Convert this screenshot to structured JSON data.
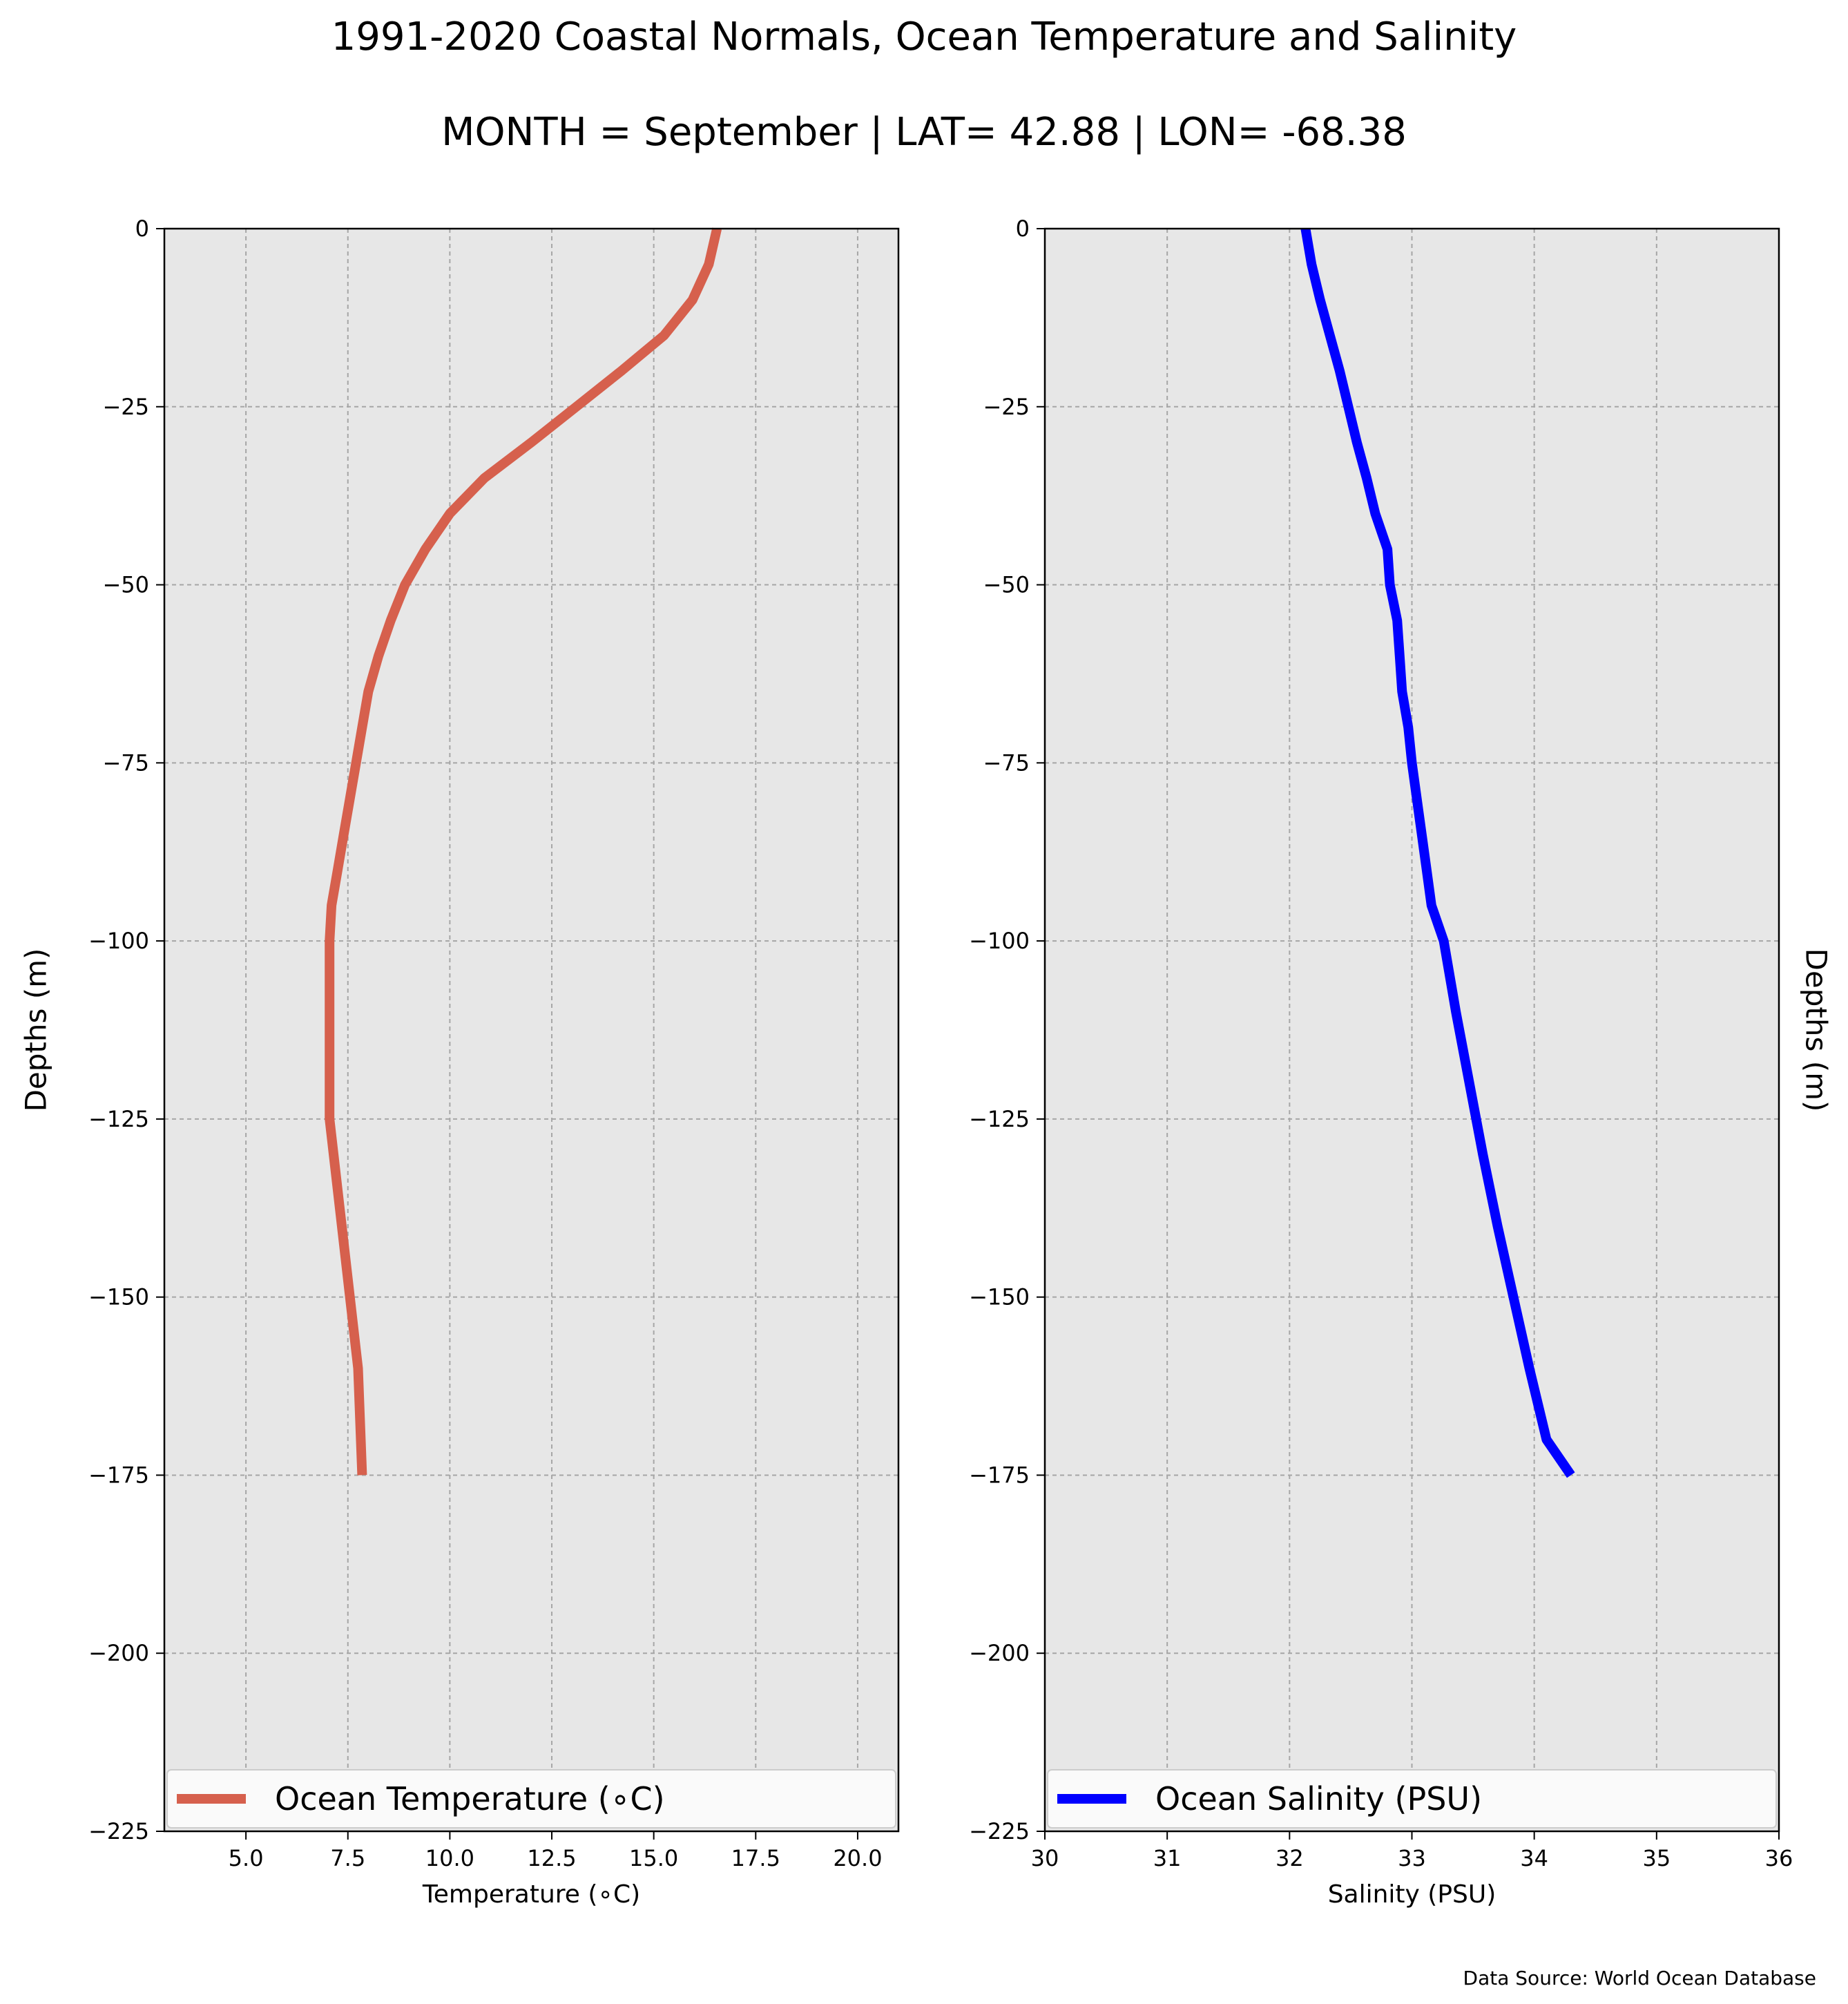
{
  "figure": {
    "title": "1991-2020 Coastal Normals, Ocean Temperature and Salinity",
    "subtitle": "MONTH = September | LAT= 42.88 | LON= -68.38",
    "source": "Data Source: World Ocean Database"
  },
  "chart_data": [
    {
      "type": "line",
      "xlabel": "Temperature (∘C)",
      "ylabel": "Depths (m)",
      "xlim": [
        3.0,
        21.0
      ],
      "ylim": [
        -225,
        0
      ],
      "xticks": [
        5.0,
        7.5,
        10.0,
        12.5,
        15.0,
        17.5,
        20.0
      ],
      "xtick_labels": [
        "5.0",
        "7.5",
        "10.0",
        "12.5",
        "15.0",
        "17.5",
        "20.0"
      ],
      "yticks": [
        0,
        -25,
        -50,
        -75,
        -100,
        -125,
        -150,
        -175,
        -200,
        -225
      ],
      "ytick_labels": [
        "0",
        "−25",
        "−50",
        "−75",
        "−100",
        "−125",
        "−150",
        "−175",
        "−200",
        "−225"
      ],
      "grid": true,
      "legend_position": "lower center",
      "series": [
        {
          "name": "Ocean Temperature (∘C)",
          "color": "#d6604d",
          "x": [
            16.55,
            16.35,
            15.95,
            15.25,
            14.2,
            13.1,
            12.0,
            10.85,
            10.0,
            9.4,
            8.9,
            8.55,
            8.25,
            8.0,
            7.85,
            7.7,
            7.55,
            7.4,
            7.25,
            7.1,
            7.05,
            7.05,
            7.05,
            7.05,
            7.05,
            7.05,
            7.15,
            7.25,
            7.35,
            7.45,
            7.55,
            7.65,
            7.75,
            7.85
          ],
          "y": [
            0,
            -5,
            -10,
            -15,
            -20,
            -25,
            -30,
            -35,
            -40,
            -45,
            -50,
            -55,
            -60,
            -65,
            -70,
            -75,
            -80,
            -85,
            -90,
            -95,
            -100,
            -105,
            -110,
            -115,
            -120,
            -125,
            -130,
            -135,
            -140,
            -145,
            -150,
            -155,
            -160,
            -175
          ]
        }
      ]
    },
    {
      "type": "line",
      "xlabel": "Salinity (PSU)",
      "ylabel": "Depths (m)",
      "xlim": [
        30,
        36
      ],
      "ylim": [
        -225,
        0
      ],
      "xticks": [
        30,
        31,
        32,
        33,
        34,
        35,
        36
      ],
      "xtick_labels": [
        "30",
        "31",
        "32",
        "33",
        "34",
        "35",
        "36"
      ],
      "yticks": [
        0,
        -25,
        -50,
        -75,
        -100,
        -125,
        -150,
        -175,
        -200,
        -225
      ],
      "ytick_labels": [
        "0",
        "−25",
        "−50",
        "−75",
        "−100",
        "−125",
        "−150",
        "−175",
        "−200",
        "−225"
      ],
      "grid": true,
      "legend_position": "lower center",
      "series": [
        {
          "name": "Ocean Salinity (PSU)",
          "color": "#0000ff",
          "x": [
            32.13,
            32.18,
            32.25,
            32.33,
            32.41,
            32.48,
            32.55,
            32.63,
            32.7,
            32.8,
            32.82,
            32.88,
            32.9,
            32.92,
            32.97,
            33.0,
            33.04,
            33.08,
            33.12,
            33.16,
            33.26,
            33.36,
            33.47,
            33.58,
            33.7,
            33.83,
            33.96,
            34.1,
            34.3
          ],
          "y": [
            0,
            -5,
            -10,
            -15,
            -20,
            -25,
            -30,
            -35,
            -40,
            -45,
            -50,
            -55,
            -60,
            -65,
            -70,
            -75,
            -80,
            -85,
            -90,
            -95,
            -100,
            -110,
            -120,
            -130,
            -140,
            -150,
            -160,
            -170,
            -175
          ]
        }
      ]
    }
  ]
}
